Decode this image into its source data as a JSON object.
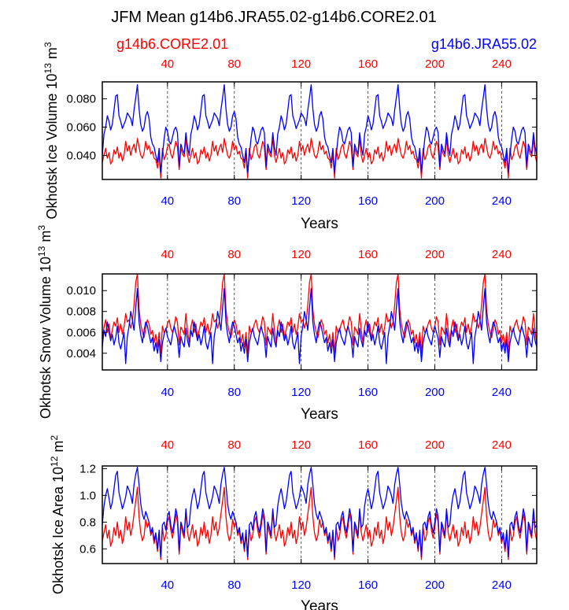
{
  "title": "JFM Mean g14b6.JRA55.02-g14b6.CORE2.01",
  "legend": {
    "left": {
      "label": "g14b6.CORE2.01",
      "color": "#ff0000"
    },
    "right": {
      "label": "g14b6.JRA55.02",
      "color": "#0000ff"
    }
  },
  "colors": {
    "core": "#ff0000",
    "jra": "#0000ff",
    "axis": "#000000"
  },
  "chart_data": [
    {
      "type": "line",
      "title": "JFM Mean g14b6.JRA55.02-g14b6.CORE2.01",
      "ylabel": "Okhotsk Ice Volume 10",
      "ylabel_exp": "13",
      "ylabel_unit": " m",
      "ylabel_unit_exp": "3",
      "xlabel": "Years",
      "xlim": [
        1,
        261
      ],
      "ylim": [
        0.023,
        0.092
      ],
      "yticks": [
        0.04,
        0.06,
        0.08
      ],
      "ytick_labels": [
        "0.040",
        "0.060",
        "0.080"
      ],
      "xticks": [
        40,
        80,
        120,
        160,
        200,
        240
      ],
      "xtick_labels": [
        "40",
        "80",
        "120",
        "160",
        "200",
        "240"
      ],
      "vlines": [
        40,
        80,
        120,
        160,
        200,
        240
      ],
      "cycle_length": 52,
      "series": [
        {
          "name": "g14b6.CORE2.01",
          "color": "#ff0000",
          "cycle": [
            0.035,
            0.04,
            0.045,
            0.038,
            0.042,
            0.034,
            0.036,
            0.044,
            0.041,
            0.046,
            0.038,
            0.042,
            0.036,
            0.04,
            0.05,
            0.043,
            0.047,
            0.04,
            0.045,
            0.048,
            0.042,
            0.052,
            0.046,
            0.04,
            0.038,
            0.042,
            0.05,
            0.044,
            0.047,
            0.041,
            0.043,
            0.038,
            0.037,
            0.031,
            0.041,
            0.024,
            0.045,
            0.037,
            0.04,
            0.046,
            0.048,
            0.041,
            0.038,
            0.044,
            0.05,
            0.046,
            0.03,
            0.045,
            0.041,
            0.039,
            0.052,
            0.04
          ]
        },
        {
          "name": "g14b6.JRA55.02",
          "color": "#0000ff",
          "cycle": [
            0.04,
            0.055,
            0.06,
            0.068,
            0.064,
            0.058,
            0.062,
            0.072,
            0.082,
            0.083,
            0.068,
            0.064,
            0.059,
            0.062,
            0.065,
            0.07,
            0.068,
            0.066,
            0.061,
            0.072,
            0.081,
            0.09,
            0.073,
            0.062,
            0.057,
            0.06,
            0.068,
            0.071,
            0.066,
            0.053,
            0.048,
            0.046,
            0.04,
            0.035,
            0.045,
            0.028,
            0.04,
            0.052,
            0.06,
            0.057,
            0.05,
            0.048,
            0.053,
            0.058,
            0.06,
            0.056,
            0.032,
            0.048,
            0.044,
            0.041,
            0.056,
            0.046
          ]
        }
      ]
    },
    {
      "type": "line",
      "ylabel": "Okhotsk Snow Volume 10",
      "ylabel_exp": "13",
      "ylabel_unit": " m",
      "ylabel_unit_exp": "3",
      "xlabel": "Years",
      "xlim": [
        1,
        261
      ],
      "ylim": [
        0.0024,
        0.0116
      ],
      "yticks": [
        0.004,
        0.006,
        0.008,
        0.01
      ],
      "ytick_labels": [
        "0.004",
        "0.006",
        "0.008",
        "0.010"
      ],
      "xticks": [
        40,
        80,
        120,
        160,
        200,
        240
      ],
      "xtick_labels": [
        "40",
        "80",
        "120",
        "160",
        "200",
        "240"
      ],
      "vlines": [
        40,
        80,
        120,
        160,
        200,
        240
      ],
      "cycle_length": 52,
      "series": [
        {
          "name": "g14b6.CORE2.01",
          "color": "#ff0000",
          "cycle": [
            0.005,
            0.0065,
            0.0072,
            0.006,
            0.0068,
            0.0055,
            0.0062,
            0.007,
            0.0066,
            0.0074,
            0.006,
            0.0068,
            0.0058,
            0.0065,
            0.0078,
            0.007,
            0.0072,
            0.0064,
            0.007,
            0.0086,
            0.0108,
            0.0116,
            0.0082,
            0.0068,
            0.006,
            0.0055,
            0.0064,
            0.0072,
            0.0068,
            0.0058,
            0.0062,
            0.005,
            0.0058,
            0.0046,
            0.006,
            0.004,
            0.0066,
            0.006,
            0.0062,
            0.0068,
            0.0072,
            0.0064,
            0.006,
            0.0066,
            0.0075,
            0.007,
            0.0048,
            0.0065,
            0.0062,
            0.0058,
            0.0078,
            0.0062
          ]
        },
        {
          "name": "g14b6.JRA55.02",
          "color": "#0000ff",
          "cycle": [
            0.0046,
            0.0062,
            0.0056,
            0.007,
            0.006,
            0.0052,
            0.0058,
            0.0048,
            0.0055,
            0.0066,
            0.005,
            0.0044,
            0.0052,
            0.006,
            0.003,
            0.0056,
            0.0066,
            0.008,
            0.0072,
            0.0062,
            0.0084,
            0.0102,
            0.007,
            0.0058,
            0.005,
            0.0062,
            0.007,
            0.0066,
            0.0058,
            0.005,
            0.0055,
            0.0042,
            0.005,
            0.004,
            0.0053,
            0.0032,
            0.005,
            0.0058,
            0.0064,
            0.0056,
            0.0052,
            0.0048,
            0.0058,
            0.0066,
            0.006,
            0.0054,
            0.0036,
            0.0056,
            0.005,
            0.0046,
            0.0064,
            0.0052
          ]
        }
      ]
    },
    {
      "type": "line",
      "ylabel": "Okhotsk Ice Area 10",
      "ylabel_exp": "12",
      "ylabel_unit": " m",
      "ylabel_unit_exp": "2",
      "xlabel": "Years",
      "xlim": [
        1,
        261
      ],
      "ylim": [
        0.49,
        1.22
      ],
      "yticks": [
        0.6,
        0.8,
        1.0,
        1.2
      ],
      "ytick_labels": [
        "0.6",
        "0.8",
        "1.0",
        "1.2"
      ],
      "xticks": [
        40,
        80,
        120,
        160,
        200,
        240
      ],
      "xtick_labels": [
        "40",
        "80",
        "120",
        "160",
        "200",
        "240"
      ],
      "vlines": [
        40,
        80,
        120,
        160,
        200,
        240
      ],
      "cycle_length": 52,
      "series": [
        {
          "name": "g14b6.CORE2.01",
          "color": "#ff0000",
          "cycle": [
            0.66,
            0.72,
            0.78,
            0.68,
            0.74,
            0.62,
            0.66,
            0.76,
            0.7,
            0.8,
            0.68,
            0.74,
            0.64,
            0.7,
            0.84,
            0.74,
            0.8,
            0.7,
            0.76,
            0.86,
            0.96,
            1.06,
            0.84,
            0.72,
            0.66,
            0.7,
            0.82,
            0.76,
            0.8,
            0.7,
            0.74,
            0.64,
            0.7,
            0.58,
            0.72,
            0.52,
            0.76,
            0.66,
            0.7,
            0.8,
            0.84,
            0.74,
            0.68,
            0.76,
            0.86,
            0.8,
            0.56,
            0.78,
            0.72,
            0.68,
            0.88,
            0.72
          ]
        },
        {
          "name": "g14b6.JRA55.02",
          "color": "#0000ff",
          "cycle": [
            0.78,
            0.92,
            1.0,
            1.05,
            0.98,
            0.9,
            0.95,
            1.05,
            1.15,
            1.18,
            1.02,
            0.96,
            0.9,
            0.94,
            0.99,
            1.07,
            1.04,
            1.0,
            0.94,
            1.08,
            1.16,
            1.21,
            1.08,
            0.94,
            0.86,
            0.82,
            0.88,
            0.84,
            0.8,
            0.72,
            0.76,
            0.66,
            0.72,
            0.6,
            0.74,
            0.54,
            0.78,
            0.8,
            0.74,
            0.84,
            0.88,
            0.78,
            0.72,
            0.8,
            0.9,
            0.84,
            0.58,
            0.8,
            0.76,
            0.7,
            0.9,
            0.76
          ]
        }
      ]
    }
  ]
}
